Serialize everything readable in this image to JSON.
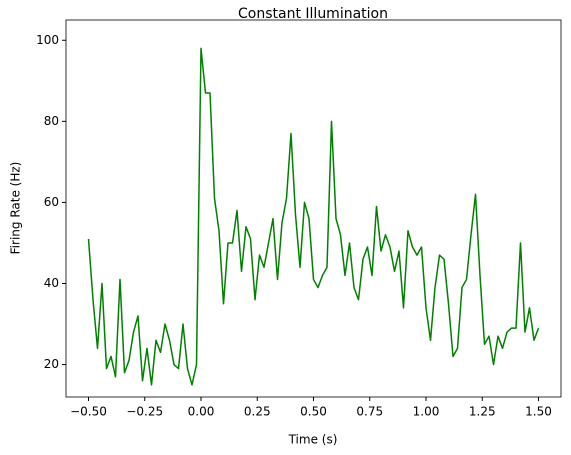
{
  "chart_data": {
    "type": "line",
    "title": "Constant Illumination",
    "x_label": "Time (s)",
    "y_label": "Firing Rate (Hz)",
    "x": [
      -0.5,
      -0.48,
      -0.46,
      -0.44,
      -0.42,
      -0.4,
      -0.38,
      -0.36,
      -0.34,
      -0.32,
      -0.3,
      -0.28,
      -0.26,
      -0.24,
      -0.22,
      -0.2,
      -0.18,
      -0.16,
      -0.14,
      -0.12,
      -0.1,
      -0.08,
      -0.06,
      -0.04,
      -0.02,
      0,
      0.02,
      0.04,
      0.06,
      0.08,
      0.1,
      0.12,
      0.14,
      0.16,
      0.18,
      0.2,
      0.22,
      0.24,
      0.26,
      0.28,
      0.3,
      0.32,
      0.34,
      0.36,
      0.38,
      0.4,
      0.42,
      0.44,
      0.46,
      0.48,
      0.5,
      0.52,
      0.54,
      0.56,
      0.58,
      0.6,
      0.62,
      0.64,
      0.66,
      0.68,
      0.7,
      0.72,
      0.74,
      0.76,
      0.78,
      0.8,
      0.82,
      0.84,
      0.86,
      0.88,
      0.9,
      0.92,
      0.94,
      0.96,
      0.98,
      1,
      1.02,
      1.04,
      1.06,
      1.08,
      1.1,
      1.12,
      1.14,
      1.16,
      1.18,
      1.2,
      1.22,
      1.24,
      1.26,
      1.28,
      1.3,
      1.32,
      1.34,
      1.36,
      1.38,
      1.4,
      1.42,
      1.44,
      1.46,
      1.48,
      1.5
    ],
    "series": [
      {
        "name": "Firing Rate",
        "color": "#008000",
        "values": [
          51,
          36,
          24,
          40,
          19,
          22,
          17,
          41,
          18,
          21,
          28,
          32,
          16,
          24,
          15,
          26,
          23,
          30,
          26,
          20,
          19,
          30,
          19,
          15,
          20,
          98,
          87,
          87,
          61,
          53,
          35,
          50,
          50,
          58,
          43,
          54,
          51,
          36,
          47,
          44,
          50,
          56,
          41,
          55,
          61,
          77,
          57,
          44,
          60,
          56,
          41,
          39,
          42,
          44,
          80,
          56,
          52,
          42,
          50,
          39,
          36,
          46,
          49,
          42,
          59,
          48,
          52,
          49,
          43,
          48,
          34,
          53,
          49,
          47,
          49,
          34,
          26,
          39,
          47,
          46,
          35,
          22,
          24,
          39,
          41,
          52,
          62,
          42,
          25,
          27,
          20,
          27,
          24,
          28,
          29,
          29,
          50,
          28,
          34,
          26,
          29
        ]
      }
    ],
    "xlim": [
      -0.6,
      1.6
    ],
    "ylim": [
      12,
      105
    ],
    "xticks": [
      {
        "value": -0.5,
        "label": "−0.50"
      },
      {
        "value": -0.25,
        "label": "−0.25"
      },
      {
        "value": 0,
        "label": "0.00"
      },
      {
        "value": 0.25,
        "label": "0.25"
      },
      {
        "value": 0.5,
        "label": "0.50"
      },
      {
        "value": 0.75,
        "label": "0.75"
      },
      {
        "value": 1,
        "label": "1.00"
      },
      {
        "value": 1.25,
        "label": "1.25"
      },
      {
        "value": 1.5,
        "label": "1.50"
      }
    ],
    "yticks": [
      20,
      40,
      60,
      80,
      100
    ]
  }
}
